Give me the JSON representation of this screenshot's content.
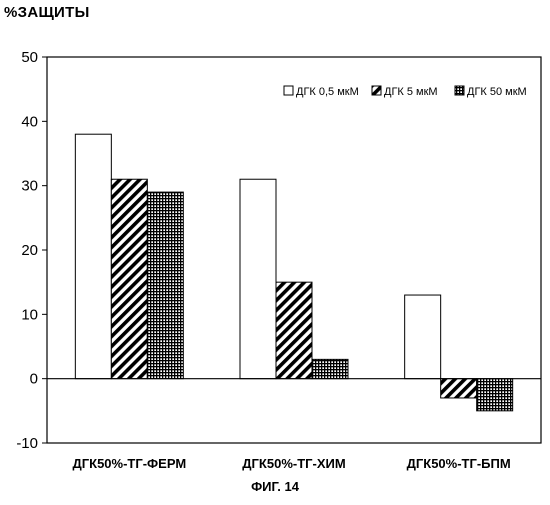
{
  "figure_caption": "ФИГ. 14",
  "chart_data": {
    "type": "bar",
    "title": "",
    "ylabel": "%ЗАЩИТЫ",
    "xlabel": "",
    "ylim": [
      -10,
      50
    ],
    "yticks": [
      -10,
      0,
      10,
      20,
      30,
      40,
      50
    ],
    "grid": false,
    "legend_position": "top-right",
    "categories": [
      "ДГК50%-ТГ-ФЕРМ",
      "ДГК50%-ТГ-ХИМ",
      "ДГК50%-ТГ-БПМ"
    ],
    "series": [
      {
        "name": "ДГК 0,5 мкМ",
        "pattern": "white",
        "values": [
          38,
          31,
          13
        ]
      },
      {
        "name": "ДГК 5 мкМ",
        "pattern": "diagonal-hatch",
        "values": [
          31,
          15,
          -3
        ]
      },
      {
        "name": "ДГК 50 мкМ",
        "pattern": "crosshatch-grid",
        "values": [
          29,
          3,
          -5
        ]
      }
    ]
  }
}
